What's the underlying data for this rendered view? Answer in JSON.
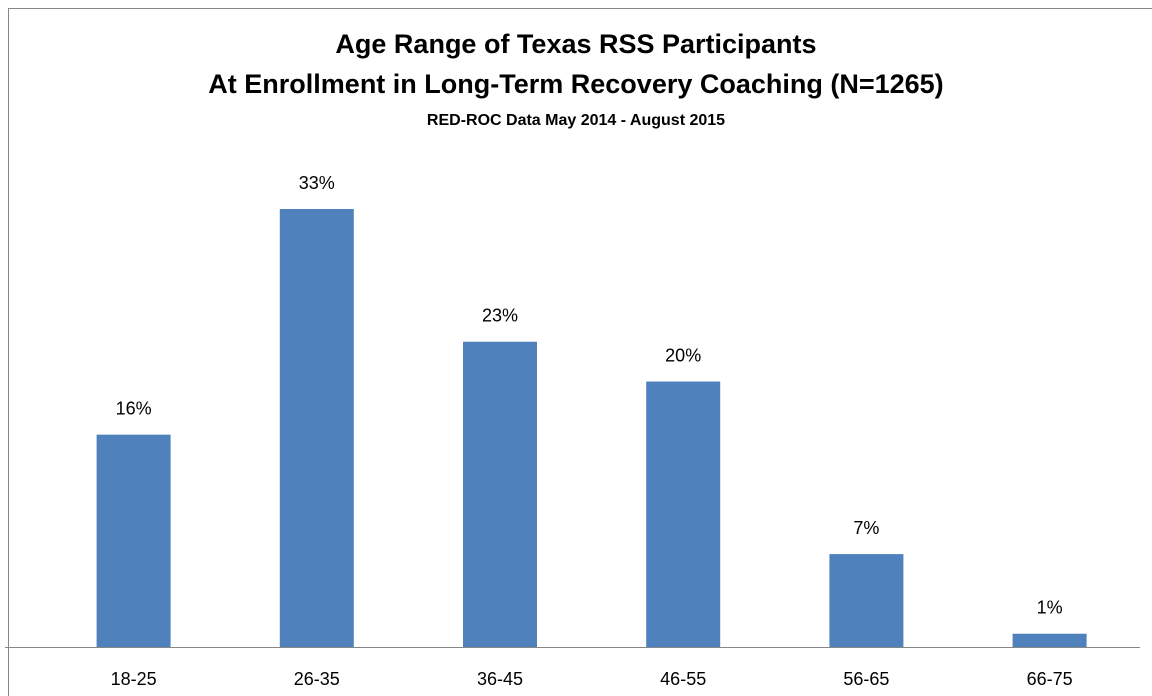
{
  "chart_data": {
    "type": "bar",
    "title": [
      "Age Range of Texas RSS Participants",
      "At Enrollment in Long-Term Recovery Coaching (N=1265)"
    ],
    "subtitle": "RED-ROC Data May 2014 - August 2015",
    "categories": [
      "18-25",
      "26-35",
      "36-45",
      "46-55",
      "56-65",
      "66-75"
    ],
    "values": [
      16,
      33,
      23,
      20,
      7,
      1
    ],
    "value_labels": [
      "16%",
      "33%",
      "23%",
      "20%",
      "7%",
      "1%"
    ],
    "color": "#4f81bd"
  }
}
